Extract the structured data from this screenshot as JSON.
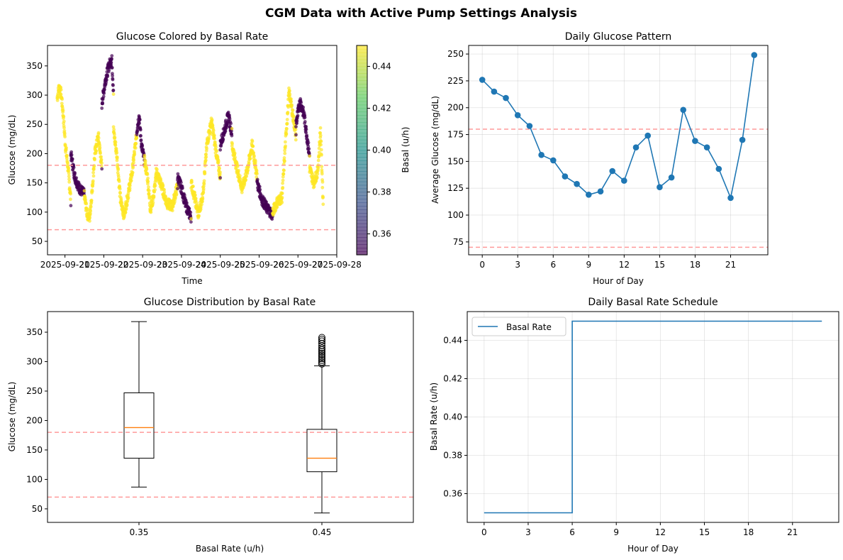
{
  "figure": {
    "suptitle": "CGM Data with Active Pump Settings Analysis"
  },
  "colors": {
    "primary": "#1f77b4",
    "median": "#ff7f0e",
    "threshold": "#ff9a9a",
    "grid": "#b0b0b0",
    "viridis_low": "#440154",
    "viridis_high": "#fde725"
  },
  "chart_data": [
    {
      "id": "scatter",
      "type": "scatter",
      "title": "Glucose Colored by Basal Rate",
      "xlabel": "Time",
      "ylabel": "Glucose (mg/dL)",
      "x_tick_labels": [
        "2025-09-21",
        "2025-09-22",
        "2025-09-23",
        "2025-09-24",
        "2025-09-25",
        "2025-09-26",
        "2025-09-27",
        "2025-09-28"
      ],
      "x_range_days": [
        20.55,
        28.0
      ],
      "ylim": [
        27,
        385
      ],
      "y_ticks": [
        50,
        100,
        150,
        200,
        250,
        300,
        350
      ],
      "hlines": [
        180,
        70
      ],
      "colorbar": {
        "label": "Basal (u/h)",
        "range": [
          0.35,
          0.45
        ],
        "ticks": [
          "0.36",
          "0.38",
          "0.40",
          "0.42",
          "0.44"
        ]
      },
      "segments": [
        {
          "start": 20.8,
          "end": 21.15,
          "points": [
            [
              0.0,
              295
            ],
            [
              0.15,
              315
            ],
            [
              0.3,
              300
            ],
            [
              0.45,
              265
            ],
            [
              0.6,
              215
            ],
            [
              0.8,
              175
            ],
            [
              1.0,
              120
            ]
          ]
        },
        {
          "start": 21.15,
          "end": 21.5,
          "points": [
            [
              0,
              200
            ],
            [
              0.3,
              160
            ],
            [
              0.6,
              142
            ],
            [
              1.0,
              130
            ]
          ]
        },
        {
          "start": 21.5,
          "end": 21.95,
          "points": [
            [
              0,
              128
            ],
            [
              0.15,
              98
            ],
            [
              0.3,
              90
            ],
            [
              0.45,
              140
            ],
            [
              0.6,
              200
            ],
            [
              0.8,
              230
            ],
            [
              1.0,
              175
            ]
          ]
        },
        {
          "start": 21.95,
          "end": 22.25,
          "points": [
            [
              0,
              285
            ],
            [
              0.3,
              325
            ],
            [
              0.6,
              350
            ],
            [
              0.85,
              362
            ],
            [
              1.0,
              305
            ]
          ]
        },
        {
          "start": 22.25,
          "end": 22.85,
          "points": [
            [
              0,
              240
            ],
            [
              0.15,
              195
            ],
            [
              0.3,
              120
            ],
            [
              0.45,
              95
            ],
            [
              0.6,
              125
            ],
            [
              0.8,
              168
            ],
            [
              1.0,
              235
            ]
          ]
        },
        {
          "start": 22.85,
          "end": 23.05,
          "points": [
            [
              0,
              240
            ],
            [
              0.3,
              265
            ],
            [
              0.6,
              215
            ],
            [
              1.0,
              185
            ]
          ]
        },
        {
          "start": 23.05,
          "end": 23.35,
          "points": [
            [
              0,
              188
            ],
            [
              0.25,
              160
            ],
            [
              0.5,
              105
            ],
            [
              0.75,
              125
            ],
            [
              1.0,
              160
            ]
          ]
        },
        {
          "start": 23.35,
          "end": 23.9,
          "points": [
            [
              0,
              170
            ],
            [
              0.25,
              145
            ],
            [
              0.5,
              115
            ],
            [
              0.75,
              110
            ],
            [
              1.0,
              145
            ]
          ]
        },
        {
          "start": 23.9,
          "end": 24.25,
          "points": [
            [
              0,
              160
            ],
            [
              0.3,
              140
            ],
            [
              0.6,
              112
            ],
            [
              1.0,
              90
            ]
          ]
        },
        {
          "start": 24.25,
          "end": 25.0,
          "points": [
            [
              0,
              150
            ],
            [
              0.12,
              125
            ],
            [
              0.25,
              95
            ],
            [
              0.4,
              130
            ],
            [
              0.55,
              220
            ],
            [
              0.7,
              255
            ],
            [
              0.85,
              205
            ],
            [
              1.0,
              160
            ]
          ]
        },
        {
          "start": 25.0,
          "end": 25.3,
          "points": [
            [
              0,
              215
            ],
            [
              0.35,
              240
            ],
            [
              0.7,
              265
            ],
            [
              1.0,
              235
            ]
          ]
        },
        {
          "start": 25.3,
          "end": 25.95,
          "points": [
            [
              0,
              215
            ],
            [
              0.2,
              175
            ],
            [
              0.4,
              140
            ],
            [
              0.6,
              170
            ],
            [
              0.8,
              215
            ],
            [
              1.0,
              160
            ]
          ]
        },
        {
          "start": 25.95,
          "end": 26.35,
          "points": [
            [
              0,
              150
            ],
            [
              0.3,
              122
            ],
            [
              0.6,
              108
            ],
            [
              1.0,
              95
            ]
          ]
        },
        {
          "start": 26.35,
          "end": 26.95,
          "points": [
            [
              0,
              100
            ],
            [
              0.2,
              118
            ],
            [
              0.4,
              125
            ],
            [
              0.55,
              220
            ],
            [
              0.7,
              305
            ],
            [
              0.85,
              270
            ],
            [
              1.0,
              230
            ]
          ]
        },
        {
          "start": 26.95,
          "end": 27.3,
          "points": [
            [
              0,
              250
            ],
            [
              0.3,
              290
            ],
            [
              0.6,
              265
            ],
            [
              1.0,
              195
            ]
          ]
        },
        {
          "start": 27.3,
          "end": 27.65,
          "points": [
            [
              0,
              175
            ],
            [
              0.3,
              150
            ],
            [
              0.6,
              170
            ],
            [
              0.8,
              240
            ],
            [
              1.0,
              115
            ]
          ]
        }
      ]
    },
    {
      "id": "line",
      "type": "line",
      "title": "Daily Glucose Pattern",
      "xlabel": "Hour of Day",
      "ylabel": "Average Glucose (mg/dL)",
      "x_ticks": [
        0,
        3,
        6,
        9,
        12,
        15,
        18,
        21
      ],
      "xlim": [
        -1.15,
        24.15
      ],
      "y_ticks": [
        75,
        100,
        125,
        150,
        175,
        200,
        225,
        250
      ],
      "ylim": [
        63,
        258
      ],
      "hlines": [
        180,
        70
      ],
      "x": [
        0,
        1,
        2,
        3,
        4,
        5,
        6,
        7,
        8,
        9,
        10,
        11,
        12,
        13,
        14,
        15,
        16,
        17,
        18,
        19,
        20,
        21,
        22,
        23
      ],
      "y": [
        226,
        215,
        209,
        193,
        183,
        156,
        151,
        136,
        129,
        119,
        122,
        141,
        132,
        163,
        174,
        126,
        135,
        198,
        169,
        163,
        143,
        116,
        170,
        249
      ]
    },
    {
      "id": "box",
      "type": "box",
      "title": "Glucose Distribution by Basal Rate",
      "xlabel": "Basal Rate (u/h)",
      "ylabel": "Glucose (mg/dL)",
      "categories": [
        "0.35",
        "0.45"
      ],
      "y_ticks": [
        50,
        100,
        150,
        200,
        250,
        300,
        350
      ],
      "ylim": [
        27,
        385
      ],
      "hlines": [
        180,
        70
      ],
      "boxes": [
        {
          "label": "0.35",
          "whisker_low": 87,
          "q1": 136,
          "median": 188,
          "q3": 247,
          "whisker_high": 368,
          "outliers": []
        },
        {
          "label": "0.45",
          "whisker_low": 43,
          "q1": 113,
          "median": 136,
          "q3": 185,
          "whisker_high": 293,
          "outliers": [
            296,
            299,
            302,
            305,
            308,
            311,
            314,
            317,
            320,
            323,
            327,
            331,
            335,
            338,
            341
          ]
        }
      ]
    },
    {
      "id": "step",
      "type": "line",
      "title": "Daily Basal Rate Schedule",
      "xlabel": "Hour of Day",
      "ylabel": "Basal Rate (u/h)",
      "legend": {
        "label": "Basal Rate",
        "location": "upper left"
      },
      "x_ticks": [
        0,
        3,
        6,
        9,
        12,
        15,
        18,
        21
      ],
      "xlim": [
        -1.15,
        24.15
      ],
      "y_ticks": [
        "0.36",
        "0.38",
        "0.40",
        "0.42",
        "0.44"
      ],
      "ylim": [
        0.345,
        0.455
      ],
      "x": [
        0,
        6,
        6,
        23
      ],
      "y": [
        0.35,
        0.35,
        0.45,
        0.45
      ]
    }
  ]
}
